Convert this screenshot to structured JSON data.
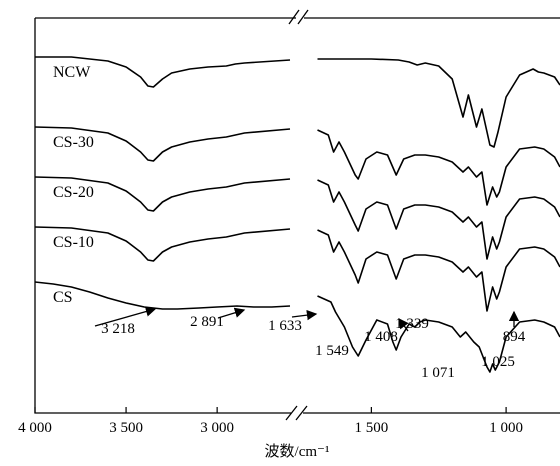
{
  "chart_data": {
    "type": "line",
    "xlabel": "波数/cm⁻¹",
    "x_axis_break": [
      2600,
      1750
    ],
    "xlim": [
      4000,
      800
    ],
    "x_ticks": [
      {
        "value": 4000,
        "label": "4 000"
      },
      {
        "value": 3500,
        "label": "3 500"
      },
      {
        "value": 3000,
        "label": "3 000"
      },
      {
        "value": 1500,
        "label": "1 500"
      },
      {
        "value": 1000,
        "label": "1 000"
      }
    ],
    "grid": false,
    "series": [
      {
        "name": "NCW",
        "baseline": 57,
        "points": [
          [
            4000,
            0
          ],
          [
            3800,
            0
          ],
          [
            3600,
            4
          ],
          [
            3500,
            10
          ],
          [
            3420,
            20
          ],
          [
            3380,
            29
          ],
          [
            3350,
            30
          ],
          [
            3300,
            22
          ],
          [
            3250,
            16
          ],
          [
            3150,
            12
          ],
          [
            3050,
            10
          ],
          [
            2950,
            9
          ],
          [
            2900,
            7
          ],
          [
            2850,
            6
          ],
          [
            2600,
            3
          ],
          [
            1700,
            2
          ],
          [
            1600,
            2
          ],
          [
            1500,
            2
          ],
          [
            1400,
            3
          ],
          [
            1360,
            5
          ],
          [
            1330,
            8
          ],
          [
            1300,
            6
          ],
          [
            1250,
            9
          ],
          [
            1200,
            22
          ],
          [
            1160,
            60
          ],
          [
            1140,
            38
          ],
          [
            1110,
            70
          ],
          [
            1090,
            52
          ],
          [
            1060,
            88
          ],
          [
            1045,
            90
          ],
          [
            1030,
            75
          ],
          [
            1000,
            40
          ],
          [
            950,
            18
          ],
          [
            900,
            12
          ],
          [
            880,
            15
          ],
          [
            860,
            16
          ],
          [
            820,
            20
          ],
          [
            800,
            28
          ]
        ]
      },
      {
        "name": "CS-30",
        "baseline": 127,
        "points": [
          [
            4000,
            0
          ],
          [
            3800,
            1
          ],
          [
            3600,
            6
          ],
          [
            3500,
            14
          ],
          [
            3420,
            25
          ],
          [
            3380,
            33
          ],
          [
            3350,
            34
          ],
          [
            3300,
            25
          ],
          [
            3250,
            20
          ],
          [
            3150,
            15
          ],
          [
            3050,
            12
          ],
          [
            2950,
            10
          ],
          [
            2900,
            8
          ],
          [
            2850,
            6
          ],
          [
            2600,
            2
          ],
          [
            1700,
            3
          ],
          [
            1660,
            8
          ],
          [
            1640,
            25
          ],
          [
            1620,
            15
          ],
          [
            1600,
            25
          ],
          [
            1560,
            48
          ],
          [
            1549,
            52
          ],
          [
            1520,
            32
          ],
          [
            1480,
            25
          ],
          [
            1440,
            28
          ],
          [
            1408,
            48
          ],
          [
            1380,
            32
          ],
          [
            1339,
            28
          ],
          [
            1300,
            28
          ],
          [
            1250,
            30
          ],
          [
            1200,
            35
          ],
          [
            1160,
            45
          ],
          [
            1140,
            40
          ],
          [
            1110,
            50
          ],
          [
            1090,
            45
          ],
          [
            1071,
            78
          ],
          [
            1050,
            60
          ],
          [
            1035,
            70
          ],
          [
            1025,
            65
          ],
          [
            1000,
            40
          ],
          [
            950,
            22
          ],
          [
            894,
            20
          ],
          [
            860,
            22
          ],
          [
            820,
            30
          ],
          [
            800,
            40
          ]
        ]
      },
      {
        "name": "CS-20",
        "baseline": 177,
        "points": [
          [
            4000,
            0
          ],
          [
            3800,
            1
          ],
          [
            3600,
            6
          ],
          [
            3500,
            14
          ],
          [
            3420,
            25
          ],
          [
            3380,
            33
          ],
          [
            3350,
            34
          ],
          [
            3300,
            25
          ],
          [
            3250,
            20
          ],
          [
            3150,
            15
          ],
          [
            3050,
            12
          ],
          [
            2950,
            10
          ],
          [
            2900,
            8
          ],
          [
            2850,
            6
          ],
          [
            2600,
            2
          ],
          [
            1700,
            3
          ],
          [
            1660,
            8
          ],
          [
            1640,
            25
          ],
          [
            1620,
            15
          ],
          [
            1600,
            25
          ],
          [
            1560,
            48
          ],
          [
            1549,
            54
          ],
          [
            1520,
            32
          ],
          [
            1480,
            25
          ],
          [
            1440,
            28
          ],
          [
            1408,
            52
          ],
          [
            1380,
            32
          ],
          [
            1339,
            28
          ],
          [
            1300,
            28
          ],
          [
            1250,
            30
          ],
          [
            1200,
            35
          ],
          [
            1160,
            45
          ],
          [
            1140,
            40
          ],
          [
            1110,
            50
          ],
          [
            1090,
            45
          ],
          [
            1071,
            82
          ],
          [
            1050,
            60
          ],
          [
            1035,
            72
          ],
          [
            1025,
            65
          ],
          [
            1000,
            40
          ],
          [
            950,
            22
          ],
          [
            894,
            20
          ],
          [
            860,
            22
          ],
          [
            820,
            30
          ],
          [
            800,
            40
          ]
        ]
      },
      {
        "name": "CS-10",
        "baseline": 227,
        "points": [
          [
            4000,
            0
          ],
          [
            3800,
            1
          ],
          [
            3600,
            6
          ],
          [
            3500,
            14
          ],
          [
            3420,
            25
          ],
          [
            3380,
            33
          ],
          [
            3350,
            34
          ],
          [
            3300,
            25
          ],
          [
            3250,
            20
          ],
          [
            3150,
            15
          ],
          [
            3050,
            12
          ],
          [
            2950,
            10
          ],
          [
            2900,
            8
          ],
          [
            2850,
            6
          ],
          [
            2600,
            2
          ],
          [
            1700,
            3
          ],
          [
            1660,
            8
          ],
          [
            1640,
            25
          ],
          [
            1620,
            15
          ],
          [
            1600,
            25
          ],
          [
            1560,
            48
          ],
          [
            1549,
            56
          ],
          [
            1520,
            32
          ],
          [
            1480,
            25
          ],
          [
            1440,
            28
          ],
          [
            1408,
            52
          ],
          [
            1380,
            32
          ],
          [
            1339,
            28
          ],
          [
            1300,
            28
          ],
          [
            1250,
            30
          ],
          [
            1200,
            35
          ],
          [
            1160,
            45
          ],
          [
            1140,
            40
          ],
          [
            1110,
            50
          ],
          [
            1090,
            45
          ],
          [
            1071,
            84
          ],
          [
            1050,
            60
          ],
          [
            1035,
            72
          ],
          [
            1025,
            65
          ],
          [
            1000,
            40
          ],
          [
            950,
            22
          ],
          [
            894,
            20
          ],
          [
            860,
            22
          ],
          [
            820,
            30
          ],
          [
            800,
            40
          ]
        ]
      },
      {
        "name": "CS",
        "baseline": 282,
        "points": [
          [
            4000,
            0
          ],
          [
            3900,
            2
          ],
          [
            3800,
            5
          ],
          [
            3700,
            10
          ],
          [
            3600,
            16
          ],
          [
            3500,
            21
          ],
          [
            3400,
            25
          ],
          [
            3300,
            27
          ],
          [
            3218,
            27
          ],
          [
            3100,
            26
          ],
          [
            3000,
            25
          ],
          [
            2891,
            24
          ],
          [
            2800,
            25
          ],
          [
            2700,
            25
          ],
          [
            2600,
            24
          ],
          [
            1700,
            14
          ],
          [
            1650,
            20
          ],
          [
            1633,
            30
          ],
          [
            1600,
            45
          ],
          [
            1570,
            65
          ],
          [
            1549,
            74
          ],
          [
            1520,
            58
          ],
          [
            1480,
            38
          ],
          [
            1440,
            42
          ],
          [
            1420,
            60
          ],
          [
            1408,
            68
          ],
          [
            1390,
            55
          ],
          [
            1360,
            42
          ],
          [
            1339,
            45
          ],
          [
            1320,
            40
          ],
          [
            1300,
            38
          ],
          [
            1250,
            40
          ],
          [
            1200,
            45
          ],
          [
            1170,
            55
          ],
          [
            1150,
            50
          ],
          [
            1120,
            60
          ],
          [
            1100,
            65
          ],
          [
            1071,
            85
          ],
          [
            1060,
            90
          ],
          [
            1050,
            82
          ],
          [
            1040,
            88
          ],
          [
            1025,
            80
          ],
          [
            1000,
            55
          ],
          [
            950,
            40
          ],
          [
            894,
            38
          ],
          [
            860,
            40
          ],
          [
            820,
            45
          ],
          [
            800,
            55
          ]
        ]
      }
    ],
    "annotations": [
      {
        "label": "3 218",
        "wavenumber": 3218
      },
      {
        "label": "2 891",
        "wavenumber": 2891
      },
      {
        "label": "1 633",
        "wavenumber": 1633
      },
      {
        "label": "1 549",
        "wavenumber": 1549
      },
      {
        "label": "1 408",
        "wavenumber": 1408
      },
      {
        "label": "1 339",
        "wavenumber": 1339
      },
      {
        "label": "1 071",
        "wavenumber": 1071
      },
      {
        "label": "1 025",
        "wavenumber": 1025
      },
      {
        "label": "894",
        "wavenumber": 894
      }
    ]
  }
}
